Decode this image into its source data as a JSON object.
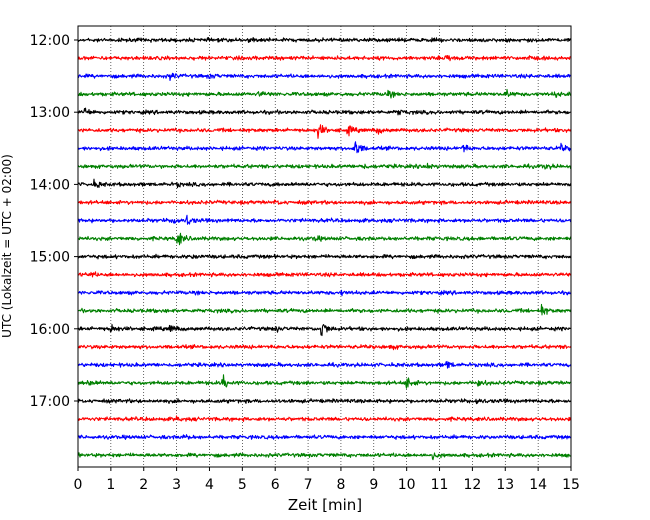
{
  "chart_data": {
    "type": "line",
    "title": "",
    "xlabel": "Zeit  [min]",
    "ylabel": "UTC (Lokalzeit = UTC + 02:00)",
    "xlim": [
      0,
      15
    ],
    "x_ticks": [
      0,
      1,
      2,
      3,
      4,
      5,
      6,
      7,
      8,
      9,
      10,
      11,
      12,
      13,
      14,
      15
    ],
    "y_tick_labels": [
      "12:00",
      "13:00",
      "14:00",
      "15:00",
      "16:00",
      "17:00"
    ],
    "grid": "vertical dotted",
    "trace_colors": [
      "#000000",
      "#ff0000",
      "#0000ff",
      "#008000"
    ],
    "traces": [
      {
        "start": "12:00",
        "events": [
          {
            "t": 5.2,
            "amp": 1.2
          }
        ]
      },
      {
        "start": "12:15",
        "events": [
          {
            "t": 11.2,
            "amp": 2.5
          },
          {
            "t": 13.6,
            "amp": 1.2
          }
        ]
      },
      {
        "start": "12:30",
        "events": [
          {
            "t": 2.8,
            "amp": 2.0
          },
          {
            "t": 4.0,
            "amp": 1.2
          }
        ]
      },
      {
        "start": "12:45",
        "events": [
          {
            "t": 5.5,
            "amp": 1.5
          },
          {
            "t": 9.4,
            "amp": 2.0
          },
          {
            "t": 13.0,
            "amp": 2.2
          },
          {
            "t": 14.5,
            "amp": 1.5
          }
        ]
      },
      {
        "start": "13:00",
        "events": [
          {
            "t": 0.2,
            "amp": 2.5
          },
          {
            "t": 9.7,
            "amp": 1.8
          }
        ]
      },
      {
        "start": "13:15",
        "events": [
          {
            "t": 7.3,
            "amp": 4.5
          },
          {
            "t": 8.2,
            "amp": 2.5
          },
          {
            "t": 9.1,
            "amp": 1.8
          }
        ]
      },
      {
        "start": "13:30",
        "events": [
          {
            "t": 8.4,
            "amp": 7.0
          },
          {
            "t": 11.7,
            "amp": 2.5
          },
          {
            "t": 14.7,
            "amp": 1.8
          }
        ]
      },
      {
        "start": "13:45",
        "events": [
          {
            "t": 8.6,
            "amp": 2.2
          },
          {
            "t": 10.6,
            "amp": 1.8
          },
          {
            "t": 14.2,
            "amp": 1.5
          }
        ]
      },
      {
        "start": "14:00",
        "events": [
          {
            "t": 0.5,
            "amp": 2.2
          },
          {
            "t": 3.0,
            "amp": 1.0
          }
        ]
      },
      {
        "start": "14:15",
        "events": [
          {
            "t": 6.0,
            "amp": 1.0
          }
        ]
      },
      {
        "start": "14:30",
        "events": [
          {
            "t": 2.9,
            "amp": 2.5
          },
          {
            "t": 3.3,
            "amp": 3.0
          }
        ]
      },
      {
        "start": "14:45",
        "events": [
          {
            "t": 3.0,
            "amp": 6.0
          },
          {
            "t": 7.2,
            "amp": 1.2
          }
        ]
      },
      {
        "start": "15:00",
        "events": [
          {
            "t": 3.5,
            "amp": 1.2
          }
        ]
      },
      {
        "start": "15:15",
        "events": [
          {
            "t": 0.3,
            "amp": 2.2
          }
        ]
      },
      {
        "start": "15:30",
        "events": [
          {
            "t": 8.0,
            "amp": 1.0
          }
        ]
      },
      {
        "start": "15:45",
        "events": [
          {
            "t": 14.1,
            "amp": 3.0
          }
        ]
      },
      {
        "start": "16:00",
        "events": [
          {
            "t": 1.0,
            "amp": 2.5
          },
          {
            "t": 2.8,
            "amp": 2.5
          },
          {
            "t": 6.0,
            "amp": 1.5
          },
          {
            "t": 7.4,
            "amp": 6.0
          }
        ]
      },
      {
        "start": "16:15",
        "events": [
          {
            "t": 9.5,
            "amp": 1.0
          }
        ]
      },
      {
        "start": "16:30",
        "events": [
          {
            "t": 11.2,
            "amp": 2.5
          }
        ]
      },
      {
        "start": "16:45",
        "events": [
          {
            "t": 0.3,
            "amp": 1.8
          },
          {
            "t": 4.4,
            "amp": 4.0
          },
          {
            "t": 10.0,
            "amp": 4.0
          },
          {
            "t": 12.1,
            "amp": 3.0
          }
        ]
      },
      {
        "start": "17:00",
        "events": [
          {
            "t": 12.1,
            "amp": 2.0
          }
        ]
      },
      {
        "start": "17:15",
        "events": [
          {
            "t": 3.0,
            "amp": 1.0
          }
        ]
      },
      {
        "start": "17:30",
        "events": [
          {
            "t": 3.2,
            "amp": 1.2
          }
        ]
      },
      {
        "start": "17:45",
        "events": [
          {
            "t": 10.8,
            "amp": 1.8
          }
        ]
      }
    ]
  }
}
